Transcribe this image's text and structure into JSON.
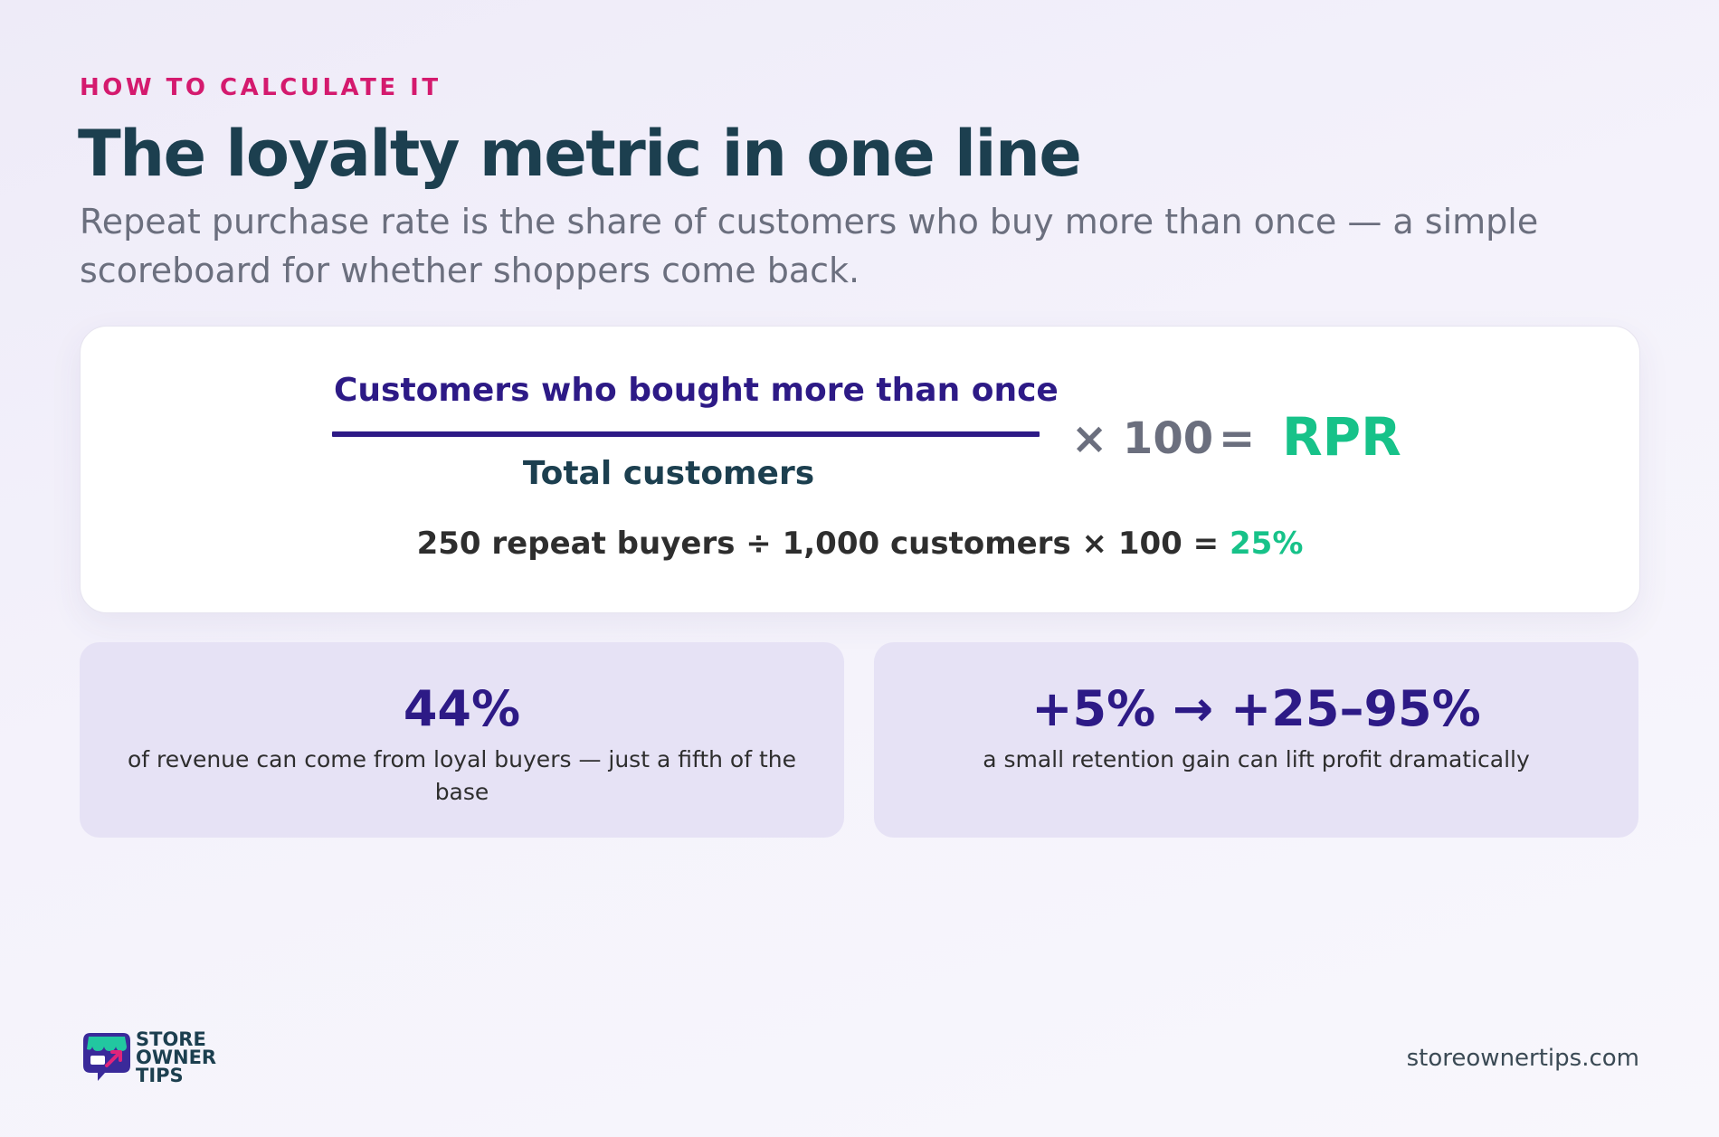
{
  "header": {
    "eyebrow": "HOW TO CALCULATE IT",
    "title": "The loyalty metric in one line",
    "subtitle": "Repeat purchase rate is the share of customers who buy more than once — a simple scoreboard for whether shoppers come back."
  },
  "formula": {
    "numerator": "Customers who bought more than once",
    "denominator": "Total customers",
    "multiplier": "× 100",
    "equals": "=",
    "result": "RPR",
    "example_text": "250 repeat buyers ÷ 1,000 customers × 100 = ",
    "example_result": "25%"
  },
  "stats": [
    {
      "value": "44%",
      "description": "of revenue can come from loyal buyers — just a fifth of the base"
    },
    {
      "value": "+5% → +25–95%",
      "description": "a small retention gain can lift profit dramatically"
    }
  ],
  "footer": {
    "brand_line1": "STORE",
    "brand_line2": "OWNER",
    "brand_line3": "TIPS",
    "site": "storeownertips.com"
  },
  "colors": {
    "accent_pink": "#d41a6e",
    "title_teal": "#1c3f4f",
    "primary_purple": "#2d1a86",
    "result_green": "#17c289",
    "stat_card_bg": "#e6e2f5"
  },
  "icons": {
    "logo": "storefront-chat-bubble-icon"
  }
}
